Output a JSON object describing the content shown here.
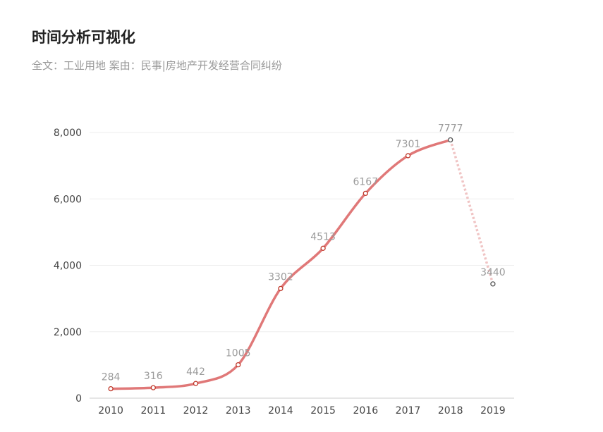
{
  "header": {
    "title": "时间分析可视化",
    "subtitle": "全文：工业用地  案由：民事|房地产开发经营合同纠纷"
  },
  "chart_data": {
    "type": "line",
    "categories": [
      "2010",
      "2011",
      "2012",
      "2013",
      "2014",
      "2015",
      "2016",
      "2017",
      "2018",
      "2019"
    ],
    "values": [
      284,
      316,
      442,
      1005,
      3302,
      4513,
      6167,
      7301,
      7777,
      3440
    ],
    "data_labels": [
      "284",
      "316",
      "442",
      "1005",
      "3302",
      "4513",
      "6167",
      "7301",
      "7777",
      "3440"
    ],
    "y_ticks": [
      0,
      2000,
      4000,
      6000,
      8000
    ],
    "y_tick_labels": [
      "0",
      "2,000",
      "4,000",
      "6,000",
      "8,000"
    ],
    "ylim": [
      0,
      8000
    ],
    "grid": true,
    "line_color": "#e07878",
    "dashed_segment_color": "#f0c4c4",
    "dashed_from_index": 8
  }
}
